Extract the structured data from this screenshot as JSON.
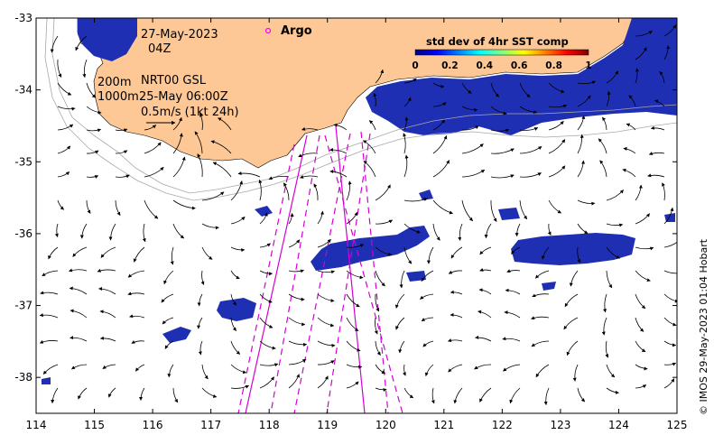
{
  "annotations": {
    "date": "27-May-2023",
    "hour": "04Z",
    "line1_left": "200m",
    "line1_right": "NRT00 GSL",
    "line2_left": "1000m",
    "line2_right": "25-May 06:00Z",
    "scale_label": "0.5m/s (1kt 24h)"
  },
  "legend": {
    "argo_label": "Argo",
    "colorbar_title": "std dev of 4hr SST comp",
    "colorbar_ticks": [
      "0",
      "0.2",
      "0.4",
      "0.6",
      "0.8",
      "1"
    ],
    "colorbar_colors": [
      "#00007f",
      "#0000ff",
      "#007fff",
      "#00ffff",
      "#7fff7f",
      "#ffff00",
      "#ff7f00",
      "#ff0000",
      "#7f0000"
    ]
  },
  "axes": {
    "x_ticks": [
      "114",
      "115",
      "116",
      "117",
      "118",
      "119",
      "120",
      "121",
      "122",
      "123",
      "124",
      "125"
    ],
    "y_ticks": [
      "-33",
      "-34",
      "-35",
      "-36",
      "-37",
      "-38"
    ],
    "lon_range": [
      114,
      125
    ],
    "lat_range": [
      -38.5,
      -33
    ]
  },
  "credit": "© IMOS 29-May-2023 01:04 Hobart",
  "colors": {
    "land": "#fdc896",
    "sst_patch": "#1e2fb4",
    "track": "#d400d4",
    "argo": "#ff00ff"
  }
}
